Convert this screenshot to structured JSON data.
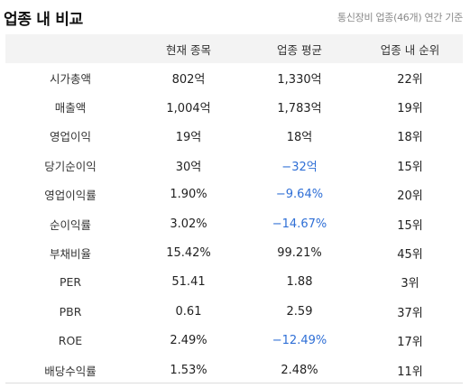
{
  "header": {
    "title": "업종 내 비교",
    "subtitle": "통신장비 업종(46개) 연간 기준"
  },
  "table": {
    "columns": [
      "",
      "현재 종목",
      "업종 평균",
      "업종 내 순위"
    ],
    "rows": [
      {
        "metric": "시가총액",
        "current": "802억",
        "avg": "1,330억",
        "rank": "22위",
        "avg_negative": false
      },
      {
        "metric": "매출액",
        "current": "1,004억",
        "avg": "1,783억",
        "rank": "19위",
        "avg_negative": false
      },
      {
        "metric": "영업이익",
        "current": "19억",
        "avg": "18억",
        "rank": "18위",
        "avg_negative": false
      },
      {
        "metric": "당기순이익",
        "current": "30억",
        "avg": "−32억",
        "rank": "15위",
        "avg_negative": true
      },
      {
        "metric": "영업이익률",
        "current": "1.90%",
        "avg": "−9.64%",
        "rank": "20위",
        "avg_negative": true
      },
      {
        "metric": "순이익률",
        "current": "3.02%",
        "avg": "−14.67%",
        "rank": "15위",
        "avg_negative": true
      },
      {
        "metric": "부채비율",
        "current": "15.42%",
        "avg": "99.21%",
        "rank": "45위",
        "avg_negative": false
      },
      {
        "metric": "PER",
        "current": "51.41",
        "avg": "1.88",
        "rank": "3위",
        "avg_negative": false
      },
      {
        "metric": "PBR",
        "current": "0.61",
        "avg": "2.59",
        "rank": "37위",
        "avg_negative": false
      },
      {
        "metric": "ROE",
        "current": "2.49%",
        "avg": "−12.49%",
        "rank": "17위",
        "avg_negative": true
      },
      {
        "metric": "배당수익률",
        "current": "1.53%",
        "avg": "2.48%",
        "rank": "11위",
        "avg_negative": false
      }
    ]
  },
  "colors": {
    "negative": "#2f6fd6",
    "header_bg": "#f3f3f3"
  }
}
